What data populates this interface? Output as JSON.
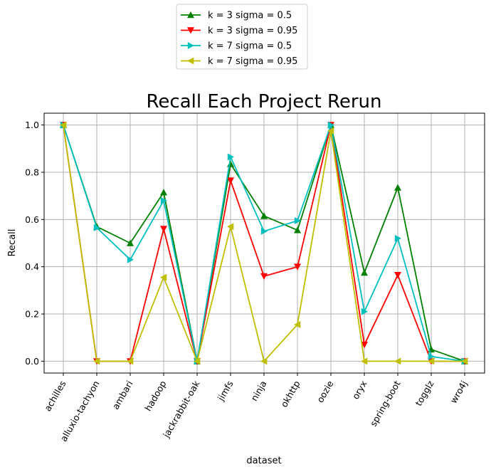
{
  "chart_data": {
    "type": "line",
    "title": "Recall Each Project Rerun",
    "xlabel": "dataset",
    "ylabel": "Recall",
    "ylim": [
      -0.05,
      1.05
    ],
    "yticks": [
      "0.0",
      "0.2",
      "0.4",
      "0.6",
      "0.8",
      "1.0"
    ],
    "grid": true,
    "legend_position": "top-center (above plot)",
    "categories": [
      "achilles",
      "alluxio-tachyon",
      "ambari",
      "hadoop",
      "jackrabbit-oak",
      "jimfs",
      "ninja",
      "okhttp",
      "oozie",
      "oryx",
      "spring-boot",
      "togglz",
      "wro4j"
    ],
    "series": [
      {
        "name": "k = 3 sigma = 0.5",
        "color": "#008000",
        "marker": "triangle-up",
        "values": [
          1.0,
          0.57,
          0.5,
          0.715,
          0.0,
          0.835,
          0.615,
          0.555,
          1.0,
          0.375,
          0.735,
          0.05,
          0.0
        ]
      },
      {
        "name": "k = 3 sigma = 0.95",
        "color": "#ff0000",
        "marker": "triangle-down",
        "values": [
          1.0,
          0.0,
          0.0,
          0.56,
          0.0,
          0.765,
          0.36,
          0.4,
          1.0,
          0.07,
          0.365,
          0.0,
          0.0
        ]
      },
      {
        "name": "k = 7 sigma = 0.5",
        "color": "#00bfbf",
        "marker": "triangle-right",
        "values": [
          1.0,
          0.565,
          0.43,
          0.68,
          0.0,
          0.865,
          0.55,
          0.595,
          1.0,
          0.21,
          0.52,
          0.02,
          0.0
        ]
      },
      {
        "name": "k = 7 sigma = 0.95",
        "color": "#bfbf00",
        "marker": "triangle-left",
        "values": [
          1.0,
          0.0,
          0.0,
          0.355,
          0.0,
          0.57,
          0.0,
          0.155,
          0.975,
          0.0,
          0.0,
          0.0,
          0.0
        ]
      }
    ]
  }
}
